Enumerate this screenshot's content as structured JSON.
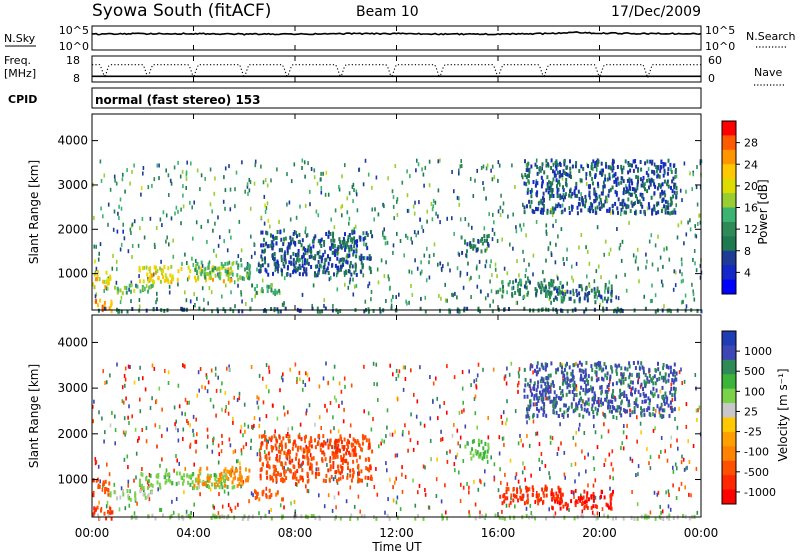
{
  "header": {
    "station": "Syowa South (fitACF)",
    "beam": "Beam 10",
    "date": "17/Dec/2009"
  },
  "noise_panel": {
    "left_label": "N.Sky",
    "right_label": "N.Search",
    "left_ticks": [
      "10^5",
      "10^0"
    ],
    "right_ticks": [
      "10^5",
      "10^0"
    ],
    "right_legend_line": "dotted"
  },
  "freq_panel": {
    "left_label_1": "Freq.",
    "left_label_2": "[MHz]",
    "right_label": "Nave",
    "left_ticks": [
      "18",
      "8"
    ],
    "right_ticks": [
      "60",
      "0"
    ],
    "right_legend_line": "dotted"
  },
  "cpid": {
    "label": "CPID",
    "mode": "normal (fast stereo) 153"
  },
  "power_panel": {
    "ylabel": "Slant Range [km]",
    "colorbar_label": "Power [dB]",
    "colorbar_ticks": [
      "28",
      "24",
      "20",
      "16",
      "12",
      "8",
      "4"
    ],
    "colorbar_colors": [
      "#ff0000",
      "#ff5a00",
      "#ff9600",
      "#ffc800",
      "#dcdc00",
      "#9acd32",
      "#3cb371",
      "#2e8b57",
      "#1e7850",
      "#1e3c96",
      "#1428c8",
      "#0000ff"
    ]
  },
  "velocity_panel": {
    "ylabel": "Slant Range [km]",
    "colorbar_label": "Velocity [m s⁻¹]",
    "colorbar_ticks": [
      "1000",
      "500",
      "100",
      "25",
      "-25",
      "-100",
      "-500",
      "-1000"
    ],
    "colorbar_colors": [
      "#1e3cb4",
      "#3c46b4",
      "#2e8b57",
      "#3cb43c",
      "#7ad24a",
      "#c8c8c8",
      "#ffc800",
      "#ffa000",
      "#ff8200",
      "#ff5000",
      "#ff2800",
      "#ff0000"
    ]
  },
  "x_axis": {
    "label": "Time UT",
    "ticks": [
      "00:00",
      "04:00",
      "08:00",
      "12:00",
      "16:00",
      "20:00",
      "00:00"
    ]
  },
  "y_ticks": [
    "4000",
    "3000",
    "2000",
    "1000"
  ],
  "chart_data": [
    {
      "type": "line",
      "name": "noise",
      "x_unit": "hours UT",
      "xlim": [
        0,
        24
      ],
      "ylim_log10": [
        0,
        5
      ],
      "series": [
        {
          "x": [
            0,
            2,
            4,
            6,
            8,
            10,
            12,
            14,
            16,
            18,
            19,
            20,
            22,
            24
          ],
          "y_log10": [
            3.3,
            3.4,
            3.4,
            3.3,
            3.3,
            3.4,
            3.4,
            3.3,
            3.3,
            3.4,
            3.7,
            3.5,
            3.4,
            3.4
          ]
        }
      ]
    },
    {
      "type": "line",
      "name": "frequency_and_nave",
      "x_unit": "hours UT",
      "xlim": [
        0,
        24
      ],
      "ylim_freq_mhz": [
        8,
        18
      ],
      "ylim_nave": [
        0,
        60
      ],
      "freq_mhz": 10.2,
      "nave": 40,
      "nave_dip_hours": [
        0.5,
        2.2,
        4.0,
        6.0,
        7.7,
        9.8,
        11.8,
        13.7,
        16.0,
        17.8,
        20.0,
        21.9
      ]
    },
    {
      "type": "heatmap",
      "name": "power",
      "x_unit": "hours UT",
      "y_unit": "km",
      "xlim": [
        0,
        24
      ],
      "ylim": [
        180,
        4600
      ],
      "value_unit": "dB",
      "clusters": [
        {
          "t0": 0.0,
          "t1": 0.8,
          "r0": 180,
          "r1": 450,
          "value": 24
        },
        {
          "t0": 0.0,
          "t1": 0.7,
          "r0": 700,
          "r1": 1100,
          "value": 20
        },
        {
          "t0": 0.6,
          "t1": 2.4,
          "r0": 600,
          "r1": 800,
          "value": 14
        },
        {
          "t0": 1.8,
          "t1": 5.6,
          "r0": 850,
          "r1": 1200,
          "value": 20
        },
        {
          "t0": 4.0,
          "t1": 6.2,
          "r0": 900,
          "r1": 1300,
          "value": 14
        },
        {
          "t0": 6.2,
          "t1": 7.5,
          "r0": 600,
          "r1": 800,
          "value": 12
        },
        {
          "t0": 6.5,
          "t1": 11.0,
          "r0": 1000,
          "r1": 2000,
          "value": 6
        },
        {
          "t0": 9.5,
          "t1": 10.3,
          "r0": 1600,
          "r1": 1900,
          "value": 8
        },
        {
          "t0": 14.5,
          "t1": 15.6,
          "r0": 1500,
          "r1": 1900,
          "value": 8
        },
        {
          "t0": 16.0,
          "t1": 18.5,
          "r0": 500,
          "r1": 900,
          "value": 10
        },
        {
          "t0": 18.0,
          "t1": 20.5,
          "r0": 400,
          "r1": 800,
          "value": 8
        },
        {
          "t0": 17.0,
          "t1": 23.0,
          "r0": 2400,
          "r1": 3600,
          "value": 6
        },
        {
          "t0": 0.0,
          "t1": 24.0,
          "r0": 180,
          "r1": 260,
          "value": 8
        }
      ]
    },
    {
      "type": "heatmap",
      "name": "velocity",
      "x_unit": "hours UT",
      "y_unit": "km",
      "xlim": [
        0,
        24
      ],
      "ylim": [
        180,
        4600
      ],
      "value_unit": "m/s",
      "clusters": [
        {
          "t0": 0.0,
          "t1": 0.8,
          "r0": 180,
          "r1": 450,
          "value": -300
        },
        {
          "t0": 0.0,
          "t1": 0.7,
          "r0": 700,
          "r1": 1100,
          "value": -200
        },
        {
          "t0": 0.6,
          "t1": 2.4,
          "r0": 600,
          "r1": 800,
          "value": 50
        },
        {
          "t0": 1.8,
          "t1": 5.6,
          "r0": 850,
          "r1": 1200,
          "value": 80
        },
        {
          "t0": 4.0,
          "t1": 6.2,
          "r0": 900,
          "r1": 1300,
          "value": -60
        },
        {
          "t0": 6.2,
          "t1": 7.5,
          "r0": 600,
          "r1": 800,
          "value": -150
        },
        {
          "t0": 6.5,
          "t1": 11.0,
          "r0": 1000,
          "r1": 2000,
          "value": -200
        },
        {
          "t0": 9.5,
          "t1": 10.3,
          "r0": 1600,
          "r1": 1900,
          "value": -400
        },
        {
          "t0": 14.5,
          "t1": 15.6,
          "r0": 1500,
          "r1": 1900,
          "value": 120
        },
        {
          "t0": 16.0,
          "t1": 18.5,
          "r0": 500,
          "r1": 900,
          "value": -300
        },
        {
          "t0": 18.0,
          "t1": 20.5,
          "r0": 400,
          "r1": 800,
          "value": -500
        },
        {
          "t0": 17.0,
          "t1": 23.0,
          "r0": 2400,
          "r1": 3600,
          "value": 600
        },
        {
          "t0": 0.0,
          "t1": 24.0,
          "r0": 180,
          "r1": 260,
          "value": 50
        }
      ]
    }
  ]
}
